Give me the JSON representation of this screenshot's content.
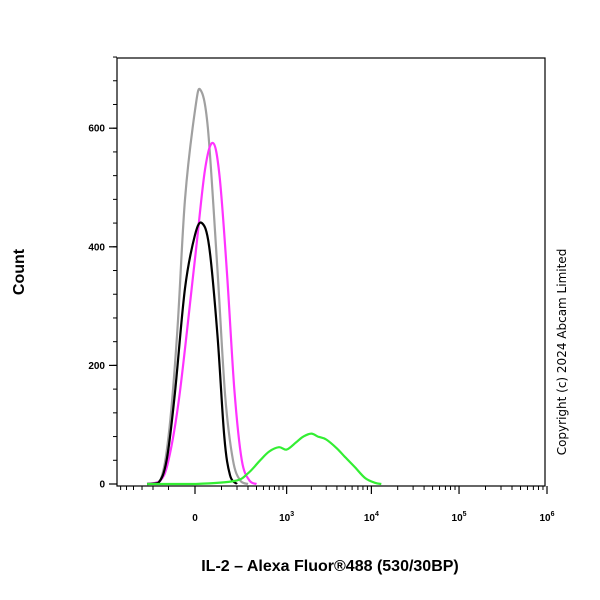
{
  "chart_data": {
    "type": "line",
    "xlabel": "IL-2 – Alexa Fluor®488 (530/30BP)",
    "ylabel": "Count",
    "ylim": [
      0,
      730
    ],
    "xscale": "biexponential (linear near 0, log above ~10^2)",
    "y_ticks": [
      0,
      200,
      400,
      600
    ],
    "y_tick_labels": [
      "0",
      "200",
      "400",
      "600"
    ],
    "x_ticks": [
      {
        "value": 0,
        "base": "0",
        "exp": ""
      },
      {
        "value": 1000,
        "base": "10",
        "exp": "3"
      },
      {
        "value": 10000,
        "base": "10",
        "exp": "4"
      },
      {
        "value": 100000,
        "base": "10",
        "exp": "5"
      },
      {
        "value": 1000000,
        "base": "10",
        "exp": "6"
      }
    ],
    "grid": false,
    "legend": "none",
    "series": [
      {
        "color": "#a0a0a0",
        "points": [
          [
            -250,
            0
          ],
          [
            -150,
            5
          ],
          [
            -100,
            80
          ],
          [
            -60,
            250
          ],
          [
            -30,
            480
          ],
          [
            0,
            630
          ],
          [
            15,
            665
          ],
          [
            40,
            600
          ],
          [
            80,
            360
          ],
          [
            120,
            150
          ],
          [
            170,
            40
          ],
          [
            230,
            5
          ],
          [
            300,
            0
          ]
        ]
      },
      {
        "color": "#ff33ff",
        "points": [
          [
            -250,
            0
          ],
          [
            -150,
            5
          ],
          [
            -100,
            40
          ],
          [
            -50,
            150
          ],
          [
            0,
            380
          ],
          [
            30,
            530
          ],
          [
            60,
            575
          ],
          [
            90,
            520
          ],
          [
            130,
            360
          ],
          [
            180,
            160
          ],
          [
            240,
            40
          ],
          [
            320,
            5
          ],
          [
            400,
            0
          ]
        ]
      },
      {
        "color": "#000000",
        "points": [
          [
            -250,
            0
          ],
          [
            -160,
            2
          ],
          [
            -110,
            40
          ],
          [
            -70,
            150
          ],
          [
            -30,
            330
          ],
          [
            0,
            420
          ],
          [
            20,
            440
          ],
          [
            45,
            400
          ],
          [
            80,
            250
          ],
          [
            115,
            80
          ],
          [
            150,
            15
          ],
          [
            200,
            0
          ]
        ]
      },
      {
        "color": "#33ee33",
        "points": [
          [
            -250,
            0
          ],
          [
            -150,
            0
          ],
          [
            0,
            0
          ],
          [
            180,
            5
          ],
          [
            300,
            18
          ],
          [
            450,
            40
          ],
          [
            600,
            55
          ],
          [
            800,
            62
          ],
          [
            1000,
            58
          ],
          [
            1300,
            70
          ],
          [
            1600,
            80
          ],
          [
            2000,
            85
          ],
          [
            2400,
            80
          ],
          [
            3000,
            75
          ],
          [
            4000,
            60
          ],
          [
            5000,
            45
          ],
          [
            6500,
            28
          ],
          [
            8500,
            10
          ],
          [
            11000,
            2
          ],
          [
            13000,
            0
          ]
        ]
      }
    ],
    "annotations": [
      "Copyright (c) 2024 Abcam Limited"
    ]
  }
}
